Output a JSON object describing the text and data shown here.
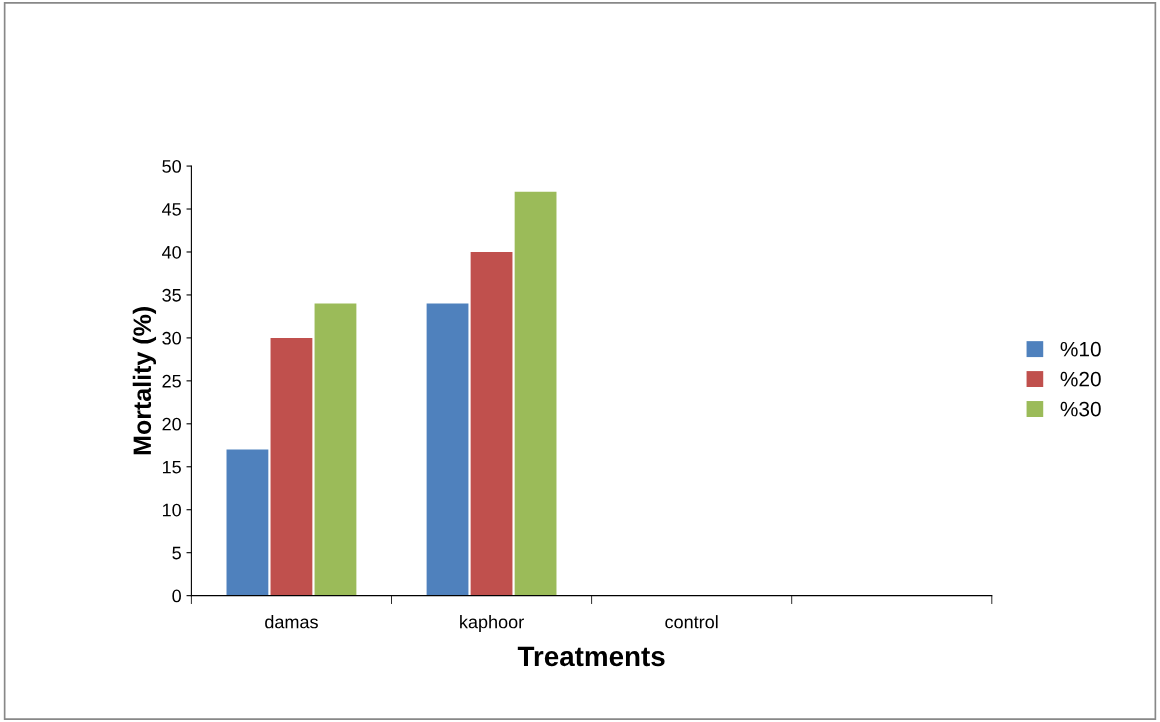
{
  "chart_data": {
    "type": "bar",
    "xlabel": "Treatments",
    "ylabel": "Mortality (%)",
    "categories": [
      "damas",
      "kaphoor",
      "control",
      null
    ],
    "series": [
      {
        "name": "%10",
        "color": "#4f81bd",
        "values": [
          17,
          34,
          0,
          null
        ]
      },
      {
        "name": "%20",
        "color": "#c0504d",
        "values": [
          30,
          40,
          0,
          null
        ]
      },
      {
        "name": "%30",
        "color": "#9bbb59",
        "values": [
          34,
          47,
          0,
          null
        ]
      }
    ],
    "ylim": [
      0,
      50
    ],
    "yticks": [
      0,
      5,
      10,
      15,
      20,
      25,
      30,
      35,
      40,
      45,
      50
    ],
    "grid": false,
    "legend": "right"
  }
}
